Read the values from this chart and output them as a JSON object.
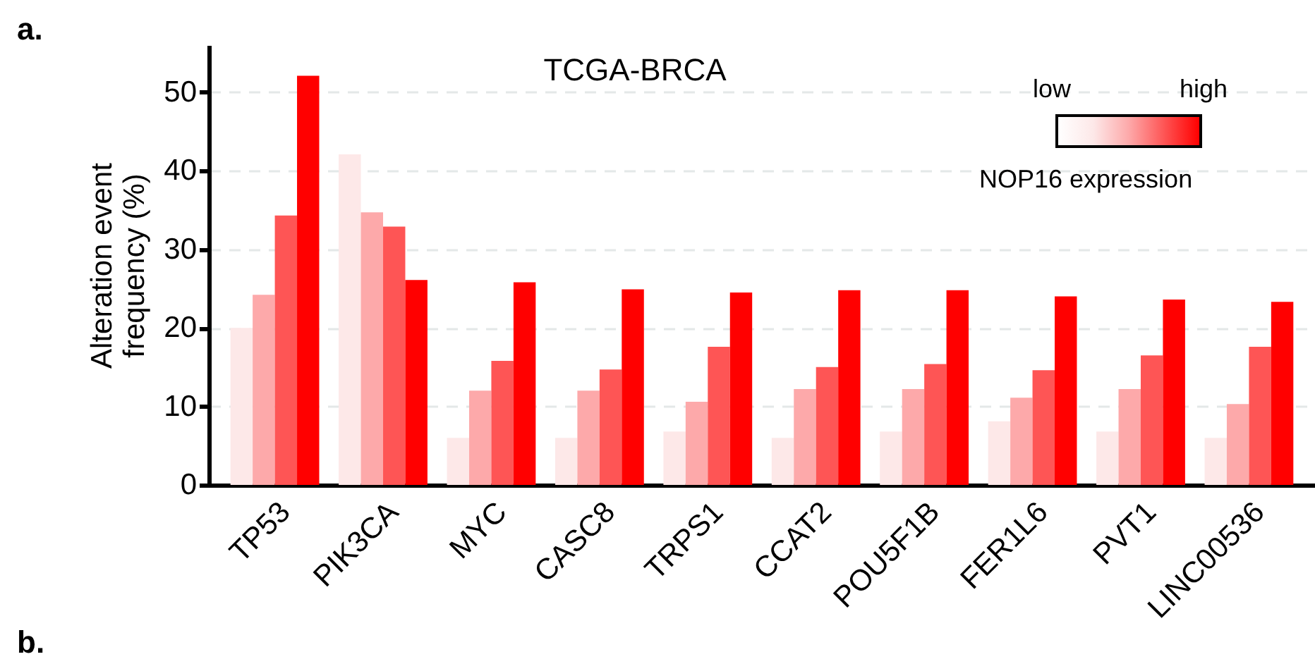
{
  "chart_data": {
    "type": "bar",
    "title": "TCGA-BRCA",
    "ylabel": "Alteration event frequency (%)",
    "legend_title": "NOP16 expression",
    "categories": [
      "TP53",
      "PIK3CA",
      "MYC",
      "CASC8",
      "TRPS1",
      "CCAT2",
      "POU5F1B",
      "FER1L6",
      "PVT1",
      "LINC00536"
    ],
    "series": [
      {
        "color": "#fde8e8",
        "values": [
          20,
          42.1,
          6.0,
          6.0,
          6.8,
          6.0,
          6.8,
          8.1,
          6.8,
          6.0
        ]
      },
      {
        "color": "#fda9aa",
        "values": [
          24.2,
          34.7,
          12.0,
          12.0,
          10.6,
          12.2,
          12.2,
          11.1,
          12.2,
          10.3
        ]
      },
      {
        "color": "#fe5555",
        "values": [
          34.3,
          32.9,
          15.8,
          14.7,
          17.6,
          15.0,
          15.4,
          14.6,
          16.5,
          17.6
        ]
      },
      {
        "color": "#ff0000",
        "values": [
          52.1,
          26.1,
          25.8,
          24.9,
          24.5,
          24.8,
          24.8,
          24.0,
          23.6,
          23.3
        ]
      }
    ],
    "ylim": [
      0,
      56
    ],
    "yticks": [
      0,
      10,
      20,
      30,
      40,
      50
    ],
    "grid": "y",
    "annotations": [
      "a.",
      "b.",
      "low",
      "high"
    ]
  }
}
